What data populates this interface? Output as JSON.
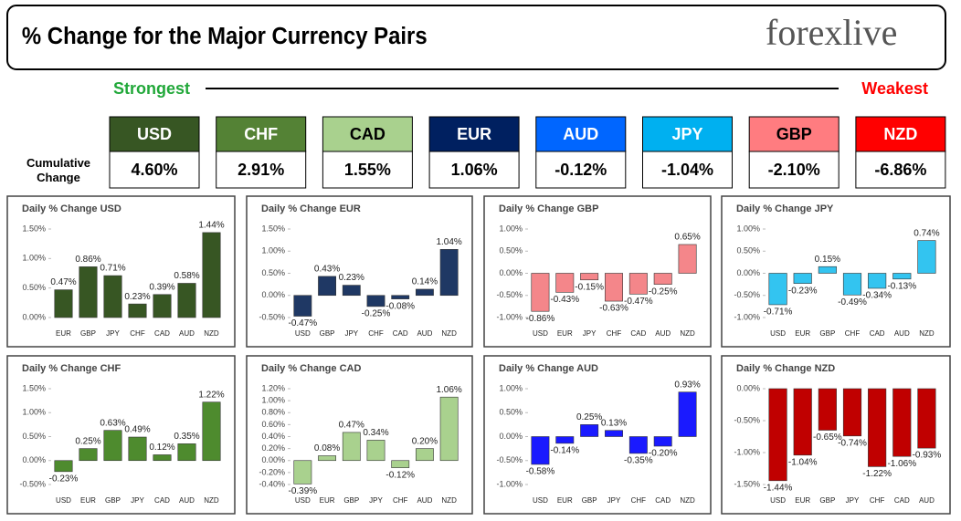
{
  "header": {
    "title": "% Change for the Major Currency Pairs",
    "logo": "forexlive"
  },
  "ranking": {
    "strongest": "Strongest",
    "weakest": "Weakest",
    "row_label": "Cumulative Change",
    "currencies": [
      {
        "name": "USD",
        "value": "4.60%",
        "color": "#375623"
      },
      {
        "name": "CHF",
        "value": "2.91%",
        "color": "#548235"
      },
      {
        "name": "CAD",
        "value": "1.55%",
        "color": "#a9d18e"
      },
      {
        "name": "EUR",
        "value": "1.06%",
        "color": "#002060"
      },
      {
        "name": "AUD",
        "value": "-0.12%",
        "color": "#0066ff"
      },
      {
        "name": "JPY",
        "value": "-1.04%",
        "color": "#00b0f0"
      },
      {
        "name": "GBP",
        "value": "-2.10%",
        "color": "#ff7c80"
      },
      {
        "name": "NZD",
        "value": "-6.86%",
        "color": "#ff0000"
      }
    ]
  },
  "chart_data": [
    {
      "type": "bar",
      "title": "Daily % Change USD",
      "color": "#375623",
      "categories": [
        "EUR",
        "GBP",
        "JPY",
        "CHF",
        "CAD",
        "AUD",
        "NZD"
      ],
      "values": [
        0.47,
        0.86,
        0.71,
        0.23,
        0.39,
        0.58,
        1.44
      ],
      "value_labels": [
        "0.47%",
        "0.86%",
        "0.71%",
        "0.23%",
        "0.39%",
        "0.58%",
        "1.44%"
      ],
      "ylim": [
        0,
        1.5
      ],
      "yticks": [
        {
          "value": 0,
          "label": "0.00%"
        },
        {
          "value": 0.5,
          "label": "0.50%"
        },
        {
          "value": 1,
          "label": "1.00%"
        },
        {
          "value": 1.5,
          "label": "1.50%"
        }
      ]
    },
    {
      "type": "bar",
      "title": "Daily % Change EUR",
      "color": "#1f3864",
      "categories": [
        "USD",
        "GBP",
        "JPY",
        "CHF",
        "CAD",
        "AUD",
        "NZD"
      ],
      "values": [
        -0.47,
        0.43,
        0.23,
        -0.25,
        -0.08,
        0.14,
        1.04
      ],
      "value_labels": [
        "-0.47%",
        "0.43%",
        "0.23%",
        "-0.25%",
        "-0.08%",
        "0.14%",
        "1.04%"
      ],
      "ylim": [
        -0.5,
        1.5
      ],
      "yticks": [
        {
          "value": -0.5,
          "label": "-0.50%"
        },
        {
          "value": 0,
          "label": "0.00%"
        },
        {
          "value": 0.5,
          "label": "0.50%"
        },
        {
          "value": 1,
          "label": "1.00%"
        },
        {
          "value": 1.5,
          "label": "1.50%"
        }
      ]
    },
    {
      "type": "bar",
      "title": "Daily % Change GBP",
      "color": "#f4868a",
      "categories": [
        "USD",
        "EUR",
        "JPY",
        "CHF",
        "CAD",
        "AUD",
        "NZD"
      ],
      "values": [
        -0.86,
        -0.43,
        -0.15,
        -0.63,
        -0.47,
        -0.25,
        0.65
      ],
      "value_labels": [
        "-0.86%",
        "-0.43%",
        "-0.15%",
        "-0.63%",
        "-0.47%",
        "-0.25%",
        "0.65%"
      ],
      "ylim": [
        -1,
        1
      ],
      "yticks": [
        {
          "value": -1,
          "label": "-1.00%"
        },
        {
          "value": -0.5,
          "label": "-0.50%"
        },
        {
          "value": 0,
          "label": "0.00%"
        },
        {
          "value": 0.5,
          "label": "0.50%"
        },
        {
          "value": 1,
          "label": "1.00%"
        }
      ]
    },
    {
      "type": "bar",
      "title": "Daily % Change JPY",
      "color": "#33c4f0",
      "categories": [
        "USD",
        "EUR",
        "GBP",
        "CHF",
        "CAD",
        "AUD",
        "NZD"
      ],
      "values": [
        -0.71,
        -0.23,
        0.15,
        -0.49,
        -0.34,
        -0.13,
        0.74
      ],
      "value_labels": [
        "-0.71%",
        "-0.23%",
        "0.15%",
        "-0.49%",
        "-0.34%",
        "-0.13%",
        "0.74%"
      ],
      "ylim": [
        -1,
        1
      ],
      "yticks": [
        {
          "value": -1,
          "label": "-1.00%"
        },
        {
          "value": -0.5,
          "label": "-0.50%"
        },
        {
          "value": 0,
          "label": "0.00%"
        },
        {
          "value": 0.5,
          "label": "0.50%"
        },
        {
          "value": 1,
          "label": "1.00%"
        }
      ]
    },
    {
      "type": "bar",
      "title": "Daily % Change CHF",
      "color": "#4e8b2e",
      "categories": [
        "USD",
        "EUR",
        "GBP",
        "JPY",
        "CAD",
        "AUD",
        "NZD"
      ],
      "values": [
        -0.23,
        0.25,
        0.63,
        0.49,
        0.12,
        0.35,
        1.22
      ],
      "value_labels": [
        "-0.23%",
        "0.25%",
        "0.63%",
        "0.49%",
        "0.12%",
        "0.35%",
        "1.22%"
      ],
      "ylim": [
        -0.5,
        1.5
      ],
      "yticks": [
        {
          "value": -0.5,
          "label": "-0.50%"
        },
        {
          "value": 0,
          "label": "0.00%"
        },
        {
          "value": 0.5,
          "label": "0.50%"
        },
        {
          "value": 1,
          "label": "1.00%"
        },
        {
          "value": 1.5,
          "label": "1.50%"
        }
      ]
    },
    {
      "type": "bar",
      "title": "Daily % Change CAD",
      "color": "#a9d18e",
      "categories": [
        "USD",
        "EUR",
        "GBP",
        "JPY",
        "CHF",
        "AUD",
        "NZD"
      ],
      "values": [
        -0.39,
        0.08,
        0.47,
        0.34,
        -0.12,
        0.2,
        1.06
      ],
      "value_labels": [
        "-0.39%",
        "0.08%",
        "0.47%",
        "0.34%",
        "-0.12%",
        "0.20%",
        "1.06%"
      ],
      "ylim": [
        -0.4,
        1.2
      ],
      "yticks": [
        {
          "value": -0.4,
          "label": "-0.40%"
        },
        {
          "value": -0.2,
          "label": "-0.20%"
        },
        {
          "value": 0,
          "label": "0.00%"
        },
        {
          "value": 0.2,
          "label": "0.20%"
        },
        {
          "value": 0.4,
          "label": "0.40%"
        },
        {
          "value": 0.6,
          "label": "0.60%"
        },
        {
          "value": 0.8,
          "label": "0.80%"
        },
        {
          "value": 1,
          "label": "1.00%"
        },
        {
          "value": 1.2,
          "label": "1.20%"
        }
      ]
    },
    {
      "type": "bar",
      "title": "Daily % Change AUD",
      "color": "#1a1aff",
      "categories": [
        "USD",
        "EUR",
        "GBP",
        "JPY",
        "CHF",
        "CAD",
        "NZD"
      ],
      "values": [
        -0.58,
        -0.14,
        0.25,
        0.13,
        -0.35,
        -0.2,
        0.93
      ],
      "value_labels": [
        "-0.58%",
        "-0.14%",
        "0.25%",
        "0.13%",
        "-0.35%",
        "-0.20%",
        "0.93%"
      ],
      "ylim": [
        -1,
        1
      ],
      "yticks": [
        {
          "value": -1,
          "label": "-1.00%"
        },
        {
          "value": -0.5,
          "label": "-0.50%"
        },
        {
          "value": 0,
          "label": "0.00%"
        },
        {
          "value": 0.5,
          "label": "0.50%"
        },
        {
          "value": 1,
          "label": "1.00%"
        }
      ]
    },
    {
      "type": "bar",
      "title": "Daily % Change NZD",
      "color": "#c00000",
      "categories": [
        "USD",
        "EUR",
        "GBP",
        "JPY",
        "CHF",
        "CAD",
        "AUD"
      ],
      "values": [
        -1.44,
        -1.04,
        -0.65,
        -0.74,
        -1.22,
        -1.06,
        -0.93
      ],
      "value_labels": [
        "-1.44%",
        "-1.04%",
        "-0.65%",
        "-0.74%",
        "-1.22%",
        "-1.06%",
        "-0.93%"
      ],
      "ylim": [
        -1.5,
        0
      ],
      "yticks": [
        {
          "value": -1.5,
          "label": "-1.50%"
        },
        {
          "value": -1,
          "label": "-1.00%"
        },
        {
          "value": -0.5,
          "label": "-0.50%"
        },
        {
          "value": 0,
          "label": "0.00%"
        }
      ]
    }
  ]
}
